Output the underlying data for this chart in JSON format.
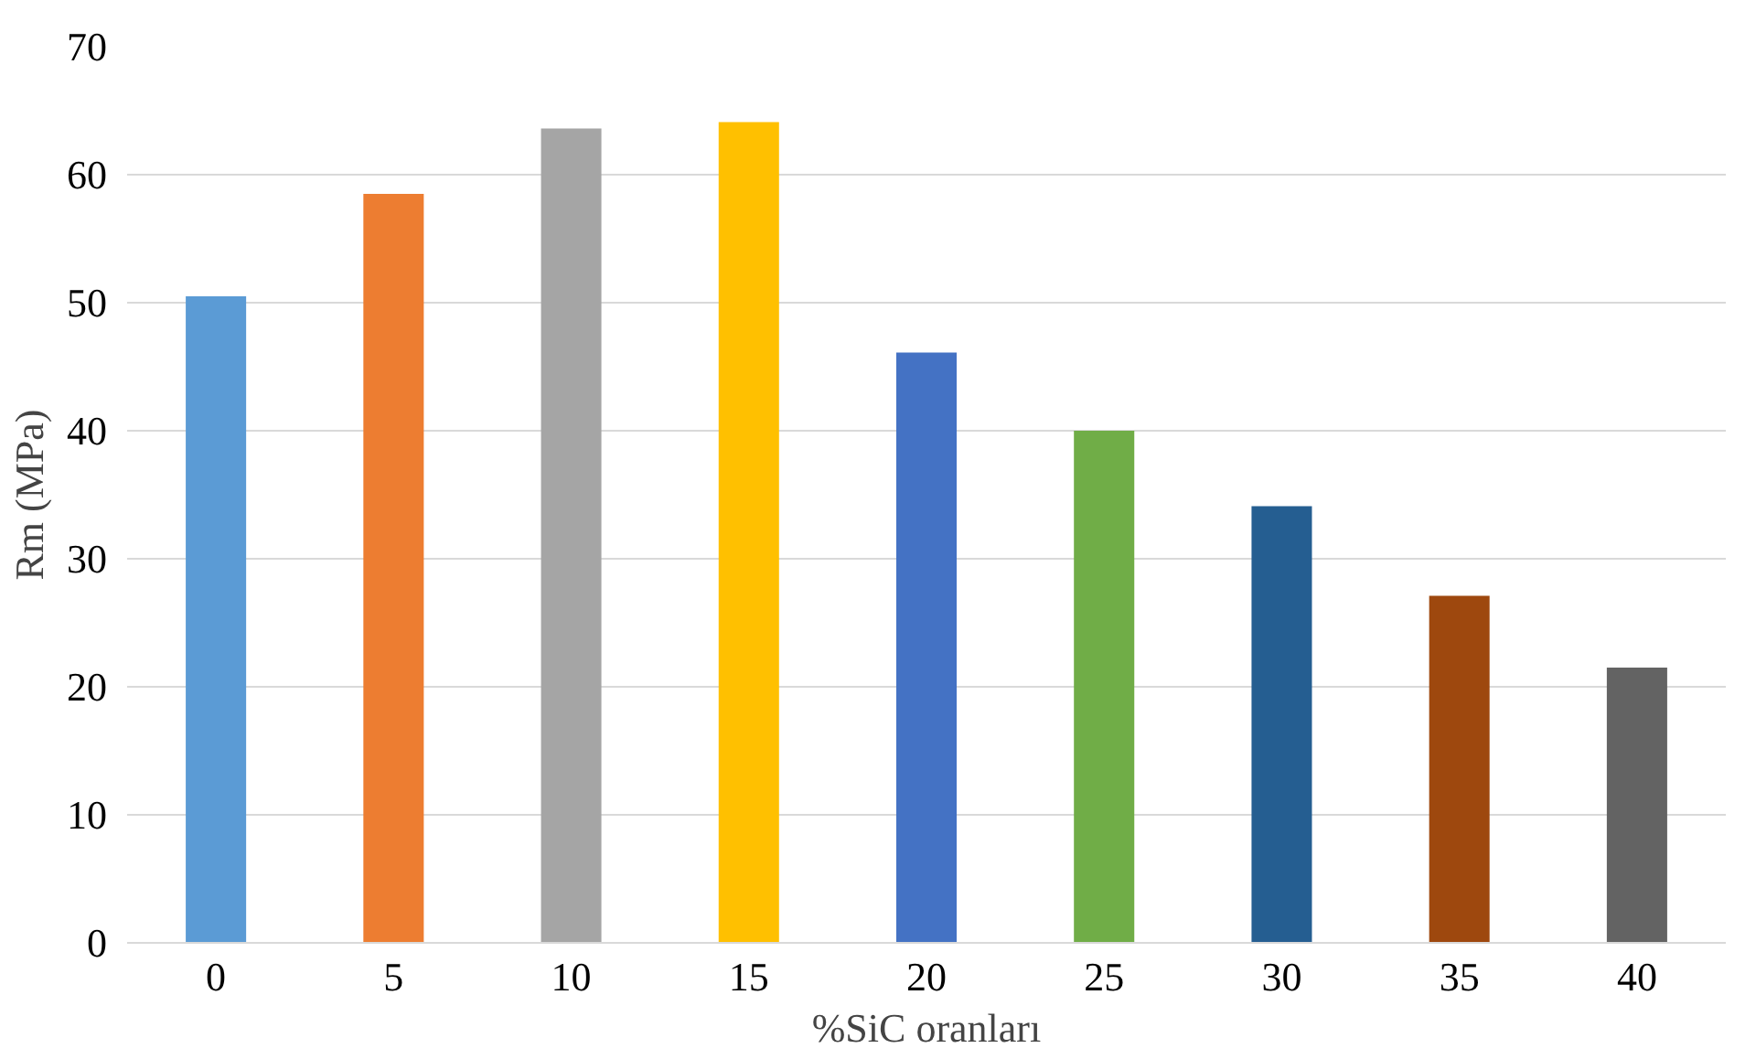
{
  "chart_data": {
    "type": "bar",
    "xlabel": "%SiC oranları",
    "ylabel": "Rm (MPa)",
    "categories": [
      "0",
      "5",
      "10",
      "15",
      "20",
      "25",
      "30",
      "35",
      "40"
    ],
    "values": [
      50.5,
      58.5,
      63.6,
      64.1,
      46.1,
      40,
      34.1,
      27.1,
      21.5
    ],
    "colors": [
      "#5b9bd5",
      "#ed7d31",
      "#a5a5a5",
      "#ffc000",
      "#4472c4",
      "#70ad47",
      "#255e91",
      "#9e480e",
      "#636363"
    ],
    "ylim": [
      0,
      70
    ],
    "yticks": [
      0,
      10,
      20,
      30,
      40,
      50,
      60,
      70
    ],
    "grid": "y"
  }
}
